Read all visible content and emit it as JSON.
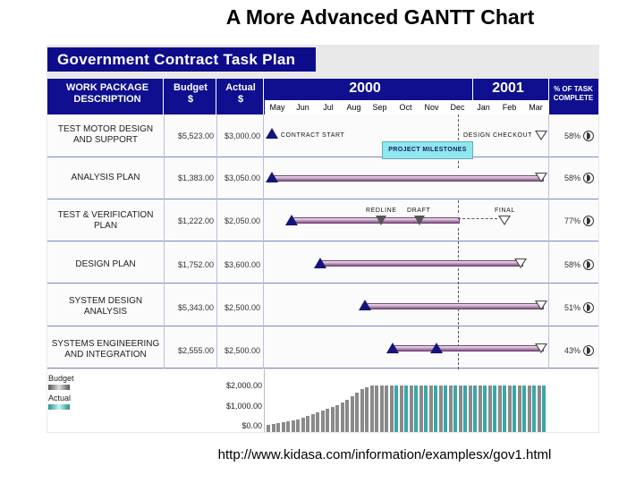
{
  "slide": {
    "title": "A More Advanced GANTT Chart",
    "url": "http://www.kidasa.com/information/examplesx/gov1.html"
  },
  "plan": {
    "title": "Government Contract Task Plan",
    "headers": {
      "work_package": [
        "WORK PACKAGE",
        "DESCRIPTION"
      ],
      "budget": [
        "Budget",
        "$"
      ],
      "actual": [
        "Actual",
        "$"
      ],
      "pct": [
        "% OF TASK",
        "COMPLETE"
      ]
    },
    "years": [
      "2000",
      "2001"
    ],
    "months": [
      "May",
      "Jun",
      "Jul",
      "Aug",
      "Sep",
      "Oct",
      "Nov",
      "Dec",
      "Jan",
      "Feb",
      "Mar"
    ],
    "milestones_badge": "PROJECT MILESTONES",
    "tasks": [
      {
        "name": [
          "TEST MOTOR DESIGN",
          "AND SUPPORT"
        ],
        "budget": "$5,523.00",
        "actual": "$3,000.00",
        "pct": "58%"
      },
      {
        "name": [
          "ANALYSIS PLAN"
        ],
        "budget": "$1,383.00",
        "actual": "$3,050.00",
        "pct": "58%"
      },
      {
        "name": [
          "TEST & VERIFICATION",
          "PLAN"
        ],
        "budget": "$1,222.00",
        "actual": "$2,050.00",
        "pct": "77%"
      },
      {
        "name": [
          "DESIGN PLAN"
        ],
        "budget": "$1,752.00",
        "actual": "$3,600.00",
        "pct": "58%"
      },
      {
        "name": [
          "SYSTEM DESIGN",
          "ANALYSIS"
        ],
        "budget": "$5,343.00",
        "actual": "$2,500.00",
        "pct": "51%"
      },
      {
        "name": [
          "SYSTEMS ENGINEERING",
          "AND INTEGRATION"
        ],
        "budget": "$2,555.00",
        "actual": "$2,500.00",
        "pct": "43%"
      }
    ],
    "milestone_labels": {
      "contract_start": "CONTRACT START",
      "design_checkout": "DESIGN CHECKOUT",
      "redline": "REDLINE",
      "draft": "DRAFT",
      "final": "FINAL"
    },
    "histogram": {
      "budget_label": "Budget",
      "actual_label": "Actual",
      "axis": [
        "$2,000.00",
        "$1,000.00",
        "$0.00"
      ],
      "budget_color": "#8a8a8a",
      "actual_color": "#3aa7a7"
    }
  }
}
